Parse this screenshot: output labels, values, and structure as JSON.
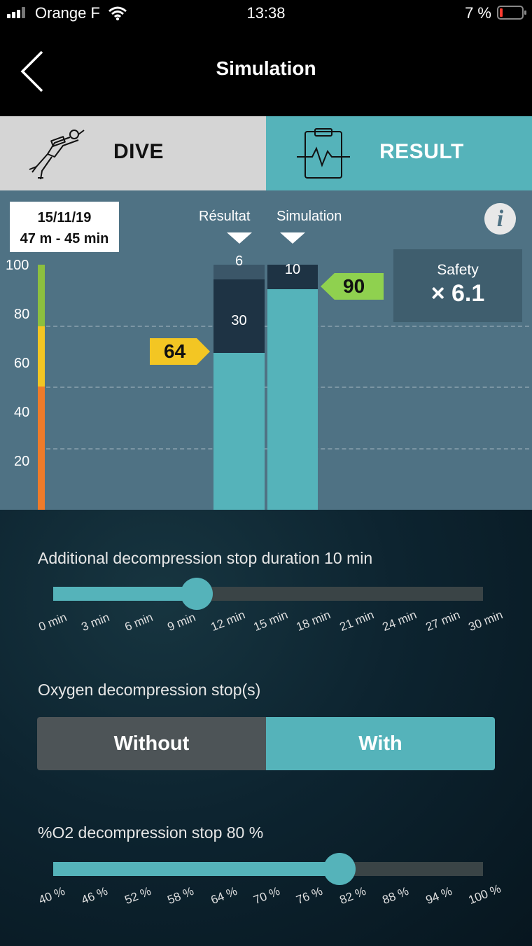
{
  "status_bar": {
    "carrier": "Orange F",
    "time": "13:38",
    "battery": "7 %",
    "icons": [
      "signal-icon",
      "wifi-icon",
      "battery-icon"
    ]
  },
  "header": {
    "title": "Simulation",
    "back_icon": "chevron-left-icon"
  },
  "tabs": {
    "dive": {
      "label": "DIVE",
      "icon": "diver-icon"
    },
    "result": {
      "label": "RESULT",
      "icon": "clipboard-heartbeat-icon"
    },
    "active": "result"
  },
  "chart": {
    "date": "15/11/19",
    "dive_info": "47 m - 45 min",
    "y_ticks": [
      "100",
      "80",
      "60",
      "40",
      "20"
    ],
    "scale_colors": {
      "green": "#8cbf3f",
      "yellow": "#f3c623",
      "orange": "#ef7b2a"
    },
    "columns": {
      "result": {
        "label": "Résultat",
        "base": 64,
        "seg_mid": "30",
        "seg_top": "6"
      },
      "simulation": {
        "label": "Simulation",
        "base": 90,
        "seg_top": "10"
      }
    },
    "tag_result": "64",
    "tag_simulation": "90",
    "safety": {
      "label": "Safety",
      "value": "× 6.1"
    },
    "info_icon": "i"
  },
  "chart_data": {
    "type": "bar",
    "categories": [
      "Résultat",
      "Simulation"
    ],
    "series": [
      {
        "values": [
          64,
          90
        ]
      },
      {
        "values": [
          30,
          0
        ]
      },
      {
        "values": [
          6,
          10
        ]
      }
    ],
    "ylim": [
      0,
      100
    ],
    "y_ticks": [
      20,
      40,
      60,
      80,
      100
    ],
    "annotations": [
      "64",
      "90",
      "Safety × 6.1"
    ]
  },
  "decompression_slider": {
    "label": "Additional decompression stop duration 10 min",
    "value": 10,
    "min": 0,
    "max": 30,
    "ticks": [
      "0 min",
      "3 min",
      "6 min",
      "9 min",
      "12 min",
      "15 min",
      "18 min",
      "21 min",
      "24 min",
      "27 min",
      "30 min"
    ]
  },
  "oxygen": {
    "label": "Oxygen decompression stop(s)",
    "options": [
      "Without",
      "With"
    ],
    "selected": "With"
  },
  "o2_slider": {
    "label": "%O2 decompression stop 80 %",
    "value": 80,
    "min": 40,
    "max": 100,
    "ticks": [
      "40 %",
      "46 %",
      "52 %",
      "58 %",
      "64 %",
      "70 %",
      "76 %",
      "82 %",
      "88 %",
      "94 %",
      "100 %"
    ]
  },
  "colors": {
    "accent": "#55b3ba",
    "chart_bg": "#4f7284",
    "bar_dark": "#1e3344"
  }
}
